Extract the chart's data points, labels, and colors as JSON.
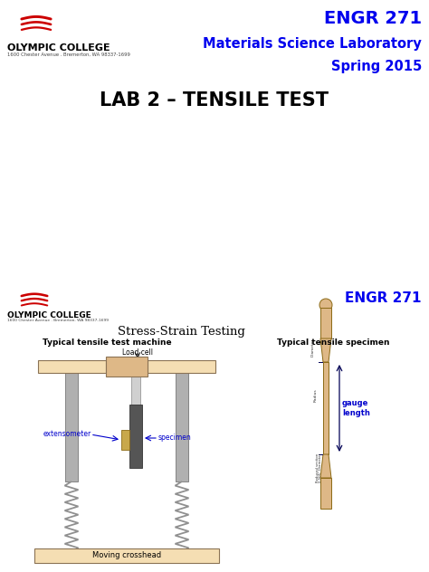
{
  "bg_color": "#ffffff",
  "page_width": 4.74,
  "page_height": 6.32,
  "dpi": 100,
  "top_half": {
    "engr_text": "ENGR 271",
    "engr_color": "#0000ee",
    "college_name": "OLYMPIC COLLEGE",
    "college_address": "1600 Chester Avenue . Bremerton, WA 98337-1699",
    "lab_subtitle1": "Materials Science Laboratory",
    "lab_subtitle2": "Spring 2015",
    "lab_title": "LAB 2 – TENSILE TEST",
    "subtitle_color": "#0000ee",
    "title_color": "#000000"
  },
  "bottom_half": {
    "engr_text": "ENGR 271",
    "engr_color": "#0000ee",
    "college_name": "OLYMPIC COLLEGE",
    "college_address": "1600 Chester Avenue . Bremerton, WA 98337-1699",
    "section_title": "Stress-Strain Testing",
    "left_heading": "Typical tensile test machine",
    "right_heading": "Typical tensile specimen",
    "load_cell_label": "Load cell",
    "extensometer_label": "extensometer",
    "specimen_label": "specimen",
    "crosshead_label": "Moving crosshead",
    "gauge_label": "gauge\nlength",
    "label_color_blue": "#0000cc",
    "beam_color": "#f5deb3",
    "beam_border": "#8b7355",
    "column_color": "#b0b0b0",
    "base_color": "#f5deb3",
    "load_cell_color": "#deb887",
    "specimen_color": "#8b6000",
    "dogbone_color": "#deb887",
    "dogbone_border": "#8b6914"
  }
}
